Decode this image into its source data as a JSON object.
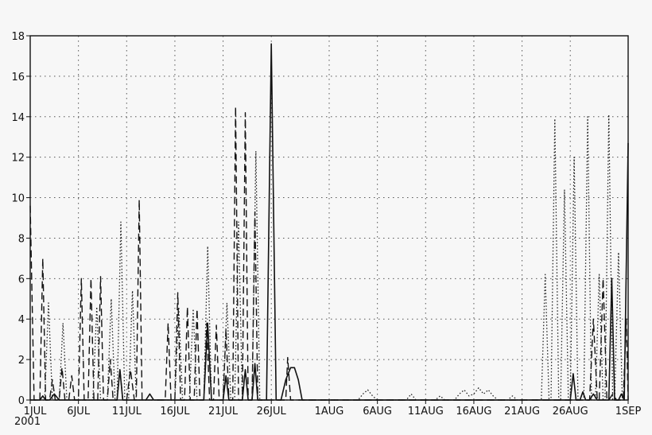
{
  "chart_data": {
    "type": "line",
    "title": "",
    "xlabel": "",
    "ylabel": "",
    "x_unit": "day of July–August 2001 (1JUL = day 0)",
    "xlim": [
      0,
      62
    ],
    "ylim": [
      0,
      18
    ],
    "grid": true,
    "legend": "none",
    "y_ticks": [
      0,
      2,
      4,
      6,
      8,
      10,
      12,
      14,
      16,
      18
    ],
    "y_tick_labels": [
      "0",
      "2",
      "4",
      "6",
      "8",
      "10",
      "12",
      "14",
      "16",
      "18"
    ],
    "x_ticks": [
      0,
      5,
      10,
      15,
      20,
      25,
      31,
      36,
      41,
      46,
      51,
      56,
      62
    ],
    "x_tick_labels": [
      "1JUL",
      "6JUL",
      "11JUL",
      "16JUL",
      "21JUL",
      "26JUL",
      "1AUG",
      "6AUG",
      "11AUG",
      "16AUG",
      "21AUG",
      "26AUG",
      "1SEP"
    ],
    "x_sub_label": "2001",
    "series": [
      {
        "style": "solid",
        "color": "#111111",
        "points": [
          [
            0,
            0
          ],
          [
            1,
            0
          ],
          [
            1.3,
            0.2
          ],
          [
            1.6,
            0
          ],
          [
            2,
            0
          ],
          [
            2.5,
            0.3
          ],
          [
            3,
            0
          ],
          [
            9,
            0
          ],
          [
            9.3,
            1.5
          ],
          [
            9.6,
            0
          ],
          [
            12,
            0
          ],
          [
            12.4,
            0.3
          ],
          [
            12.8,
            0
          ],
          [
            18,
            0
          ],
          [
            18.4,
            3.8
          ],
          [
            18.8,
            0
          ],
          [
            20,
            0
          ],
          [
            20.3,
            1.2
          ],
          [
            20.6,
            0
          ],
          [
            22,
            0
          ],
          [
            22.3,
            1.5
          ],
          [
            22.6,
            0
          ],
          [
            23,
            0
          ],
          [
            23.3,
            1.8
          ],
          [
            23.6,
            0
          ],
          [
            24.5,
            0
          ],
          [
            25,
            17.6
          ],
          [
            25.5,
            0
          ],
          [
            26,
            0
          ],
          [
            26.5,
            1
          ],
          [
            27,
            1.6
          ],
          [
            27.4,
            1.6
          ],
          [
            27.8,
            1
          ],
          [
            28.2,
            0
          ],
          [
            56,
            0
          ],
          [
            56.3,
            1.3
          ],
          [
            56.6,
            0
          ],
          [
            57,
            0
          ],
          [
            57.3,
            0.4
          ],
          [
            57.6,
            0
          ],
          [
            58,
            0
          ],
          [
            58.4,
            0.3
          ],
          [
            58.8,
            0
          ],
          [
            60,
            0
          ],
          [
            60.3,
            6
          ],
          [
            60.6,
            0
          ],
          [
            61,
            0
          ],
          [
            61.3,
            0.3
          ],
          [
            61.6,
            0
          ],
          [
            62,
            12.7
          ]
        ]
      },
      {
        "style": "dashed",
        "color": "#111111",
        "points": [
          [
            0,
            9.6
          ],
          [
            0.4,
            0
          ],
          [
            1,
            0
          ],
          [
            1.3,
            7
          ],
          [
            1.6,
            0
          ],
          [
            2,
            0
          ],
          [
            2.3,
            1
          ],
          [
            2.6,
            0
          ],
          [
            3,
            0
          ],
          [
            3.3,
            1.6
          ],
          [
            3.6,
            0
          ],
          [
            4,
            0
          ],
          [
            4.3,
            1.2
          ],
          [
            4.6,
            0
          ],
          [
            5,
            0
          ],
          [
            5.3,
            6
          ],
          [
            5.6,
            0
          ],
          [
            6,
            0
          ],
          [
            6.3,
            6
          ],
          [
            6.6,
            0
          ],
          [
            7,
            0
          ],
          [
            7.3,
            6.1
          ],
          [
            7.6,
            0
          ],
          [
            8,
            0
          ],
          [
            8.3,
            2
          ],
          [
            8.6,
            0
          ],
          [
            9,
            0
          ],
          [
            9.3,
            1.5
          ],
          [
            9.6,
            0
          ],
          [
            10,
            0
          ],
          [
            10.4,
            1.5
          ],
          [
            10.8,
            0
          ],
          [
            11,
            0
          ],
          [
            11.3,
            9.9
          ],
          [
            11.6,
            0
          ],
          [
            14,
            0
          ],
          [
            14.3,
            3.8
          ],
          [
            14.6,
            0
          ],
          [
            15,
            0
          ],
          [
            15.3,
            5.3
          ],
          [
            15.6,
            0
          ],
          [
            16,
            0
          ],
          [
            16.3,
            4.6
          ],
          [
            16.6,
            0
          ],
          [
            17,
            0
          ],
          [
            17.3,
            4.5
          ],
          [
            17.6,
            0
          ],
          [
            18,
            0
          ],
          [
            18.3,
            3.8
          ],
          [
            18.6,
            0
          ],
          [
            19,
            0
          ],
          [
            19.3,
            3.7
          ],
          [
            19.6,
            0
          ],
          [
            20,
            0
          ],
          [
            20.3,
            3.5
          ],
          [
            20.6,
            0
          ],
          [
            21,
            0
          ],
          [
            21.3,
            14.5
          ],
          [
            21.6,
            0
          ],
          [
            22,
            0
          ],
          [
            22.3,
            14.2
          ],
          [
            22.6,
            0
          ],
          [
            23,
            0
          ],
          [
            23.3,
            9.3
          ],
          [
            23.6,
            0
          ],
          [
            24.5,
            0
          ],
          [
            25,
            0
          ],
          [
            26.5,
            0
          ],
          [
            26.7,
            2.1
          ],
          [
            27,
            0
          ],
          [
            58,
            0
          ],
          [
            58.4,
            4
          ],
          [
            58.8,
            0
          ],
          [
            59,
            0
          ],
          [
            59.4,
            6
          ],
          [
            59.8,
            0
          ],
          [
            60,
            0
          ],
          [
            60.4,
            0.3
          ],
          [
            60.8,
            0
          ],
          [
            61.5,
            0
          ],
          [
            61.8,
            4
          ],
          [
            62,
            0
          ]
        ]
      },
      {
        "style": "dotted",
        "color": "#222222",
        "points": [
          [
            0,
            0
          ],
          [
            1.5,
            0
          ],
          [
            1.9,
            4.8
          ],
          [
            2.3,
            0
          ],
          [
            3,
            0
          ],
          [
            3.4,
            3.8
          ],
          [
            3.8,
            0
          ],
          [
            6.5,
            0
          ],
          [
            6.9,
            4.6
          ],
          [
            7.3,
            0
          ],
          [
            8,
            0
          ],
          [
            8.4,
            5
          ],
          [
            8.8,
            0
          ],
          [
            9,
            0
          ],
          [
            9.4,
            8.8
          ],
          [
            9.8,
            0
          ],
          [
            10.2,
            0
          ],
          [
            10.6,
            5.4
          ],
          [
            11,
            0
          ],
          [
            15,
            0
          ],
          [
            15.4,
            4.6
          ],
          [
            15.8,
            0
          ],
          [
            16.5,
            0
          ],
          [
            16.9,
            4.5
          ],
          [
            17.3,
            0
          ],
          [
            18,
            0
          ],
          [
            18.4,
            7.6
          ],
          [
            18.8,
            0
          ],
          [
            20,
            0
          ],
          [
            20.4,
            4.8
          ],
          [
            20.8,
            0
          ],
          [
            21.2,
            0
          ],
          [
            21.6,
            8.8
          ],
          [
            22,
            0
          ],
          [
            23,
            0
          ],
          [
            23.4,
            12.3
          ],
          [
            23.8,
            0
          ],
          [
            24.4,
            0
          ],
          [
            34,
            0
          ],
          [
            34.5,
            0.3
          ],
          [
            35,
            0.5
          ],
          [
            35.5,
            0.2
          ],
          [
            36,
            0
          ],
          [
            39,
            0
          ],
          [
            39.5,
            0.3
          ],
          [
            40,
            0
          ],
          [
            42,
            0
          ],
          [
            42.5,
            0.2
          ],
          [
            43,
            0
          ],
          [
            44,
            0
          ],
          [
            44.5,
            0.3
          ],
          [
            45,
            0.5
          ],
          [
            45.5,
            0.2
          ],
          [
            46,
            0.3
          ],
          [
            46.5,
            0.6
          ],
          [
            47,
            0.3
          ],
          [
            47.5,
            0.5
          ],
          [
            48,
            0.2
          ],
          [
            48.5,
            0
          ],
          [
            49.5,
            0
          ],
          [
            50,
            0.2
          ],
          [
            50.5,
            0
          ],
          [
            53,
            0
          ],
          [
            53.4,
            6.2
          ],
          [
            53.8,
            0
          ],
          [
            54,
            0
          ],
          [
            54.4,
            13.9
          ],
          [
            54.8,
            0
          ],
          [
            55,
            0
          ],
          [
            55.4,
            10.4
          ],
          [
            55.8,
            0
          ],
          [
            56,
            0
          ],
          [
            56.4,
            12
          ],
          [
            56.8,
            0
          ],
          [
            57.4,
            0
          ],
          [
            57.8,
            14
          ],
          [
            58.2,
            0
          ],
          [
            58.6,
            0
          ],
          [
            59,
            6.2
          ],
          [
            59.4,
            0
          ],
          [
            59.6,
            0
          ],
          [
            60,
            14.1
          ],
          [
            60.4,
            0
          ],
          [
            60.6,
            0
          ],
          [
            61,
            7.3
          ],
          [
            61.4,
            0
          ],
          [
            62,
            0
          ]
        ]
      }
    ]
  }
}
